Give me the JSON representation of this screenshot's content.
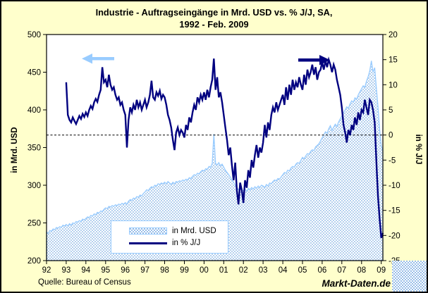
{
  "title": {
    "line1": "Industrie - Auftragseingänge in Mrd. USD vs. % J/J, SA,",
    "line2": "1992 - Feb. 2009"
  },
  "source": "Quelle: Bureau of Census",
  "watermark": "Markt-Daten.de",
  "colors": {
    "background": "#FFFFCC",
    "plot_background": "#FFFFFF",
    "area_dot": "#7FAEE3",
    "area_outline": "#99CCFF",
    "line": "#000080",
    "axis": "#000000",
    "left_arrow": "#99CCFF",
    "right_arrow": "#000080",
    "legend_border": "#99CCFF"
  },
  "chart_data": {
    "type": "area+line",
    "title": "Industrie - Auftragseingänge in Mrd. USD vs. % J/J, SA, 1992 - Feb. 2009",
    "x_axis": {
      "unit": "year",
      "tick_labels": [
        "92",
        "93",
        "94",
        "95",
        "96",
        "97",
        "98",
        "99",
        "00",
        "01",
        "02",
        "03",
        "04",
        "05",
        "06",
        "07",
        "08",
        "09"
      ]
    },
    "left_axis": {
      "label": "in Mrd. USD",
      "min": 200,
      "max": 500,
      "ticks": [
        500,
        450,
        400,
        350,
        300,
        250,
        200
      ]
    },
    "right_axis": {
      "label": "in % J/J",
      "min": -25,
      "max": 20,
      "ticks": [
        20,
        15,
        10,
        5,
        0,
        -5,
        -10,
        -15,
        -20,
        -25
      ],
      "zero_line_dashed": true
    },
    "legend": {
      "position": "inside-bottom-left",
      "items": [
        "in Mrd. USD",
        "in % J/J"
      ]
    },
    "series": [
      {
        "name": "in Mrd. USD",
        "type": "area",
        "axis": "left",
        "start": "1992-01",
        "frequency": "monthly",
        "values": [
          238,
          236,
          240,
          239,
          242,
          241,
          244,
          243,
          245,
          244,
          247,
          246,
          248,
          246,
          249,
          247,
          250,
          249,
          252,
          251,
          253,
          252,
          255,
          254,
          256,
          258,
          257,
          260,
          259,
          262,
          261,
          264,
          263,
          266,
          265,
          268,
          270,
          269,
          272,
          271,
          273,
          272,
          274,
          273,
          275,
          274,
          276,
          275,
          277,
          275,
          279,
          281,
          280,
          283,
          282,
          285,
          284,
          287,
          286,
          289,
          291,
          294,
          293,
          296,
          298,
          297,
          300,
          299,
          302,
          301,
          303,
          302,
          304,
          302,
          305,
          303,
          301,
          304,
          302,
          305,
          304,
          306,
          305,
          307,
          306,
          308,
          307,
          310,
          309,
          312,
          314,
          313,
          316,
          315,
          318,
          320,
          319,
          322,
          321,
          325,
          324,
          329,
          368,
          329,
          327,
          330,
          326,
          328,
          324,
          320,
          317,
          314,
          311,
          307,
          304,
          300,
          297,
          294,
          296,
          293,
          293,
          295,
          292,
          296,
          294,
          297,
          295,
          298,
          296,
          299,
          297,
          300,
          299,
          297,
          301,
          299,
          303,
          302,
          305,
          307,
          306,
          309,
          308,
          311,
          314,
          317,
          316,
          320,
          319,
          323,
          325,
          324,
          328,
          330,
          329,
          333,
          337,
          335,
          339,
          342,
          341,
          345,
          347,
          346,
          351,
          353,
          355,
          359,
          363,
          367,
          371,
          369,
          375,
          379,
          373,
          377,
          381,
          378,
          384,
          388,
          392,
          396,
          400,
          404,
          402,
          408,
          412,
          410,
          416,
          414,
          420,
          424,
          428,
          432,
          430,
          438,
          444,
          452,
          465,
          450,
          456,
          430,
          405,
          375,
          352,
          346
        ]
      },
      {
        "name": "in % J/J",
        "type": "line",
        "axis": "right",
        "start": "1993-01",
        "frequency": "monthly",
        "values": [
          10.5,
          4.0,
          3.0,
          2.5,
          3.5,
          2.8,
          2.2,
          3.0,
          3.8,
          3.2,
          4.2,
          3.6,
          4.5,
          3.8,
          5.0,
          5.8,
          5.2,
          6.5,
          7.2,
          6.6,
          8.0,
          9.0,
          13.5,
          10.5,
          11.0,
          9.5,
          12.0,
          10.0,
          9.0,
          9.5,
          8.0,
          7.0,
          7.5,
          6.0,
          6.5,
          5.0,
          4.0,
          -2.5,
          3.0,
          5.5,
          4.5,
          6.0,
          5.0,
          7.0,
          5.5,
          6.5,
          5.0,
          6.0,
          7.0,
          5.5,
          6.5,
          8.0,
          10.8,
          7.5,
          7.0,
          8.5,
          7.8,
          8.8,
          7.2,
          8.0,
          7.5,
          6.0,
          4.0,
          3.0,
          1.5,
          -1.0,
          -3.0,
          0.5,
          1.5,
          0.0,
          1.0,
          0.5,
          -0.5,
          2.0,
          1.0,
          3.5,
          2.5,
          4.5,
          6.0,
          5.0,
          7.5,
          6.5,
          8.0,
          7.0,
          8.5,
          7.0,
          9.0,
          7.5,
          9.5,
          11.0,
          15.2,
          9.0,
          11.5,
          7.5,
          8.5,
          6.5,
          4.0,
          1.5,
          -1.0,
          -4.0,
          -2.5,
          -6.0,
          -9.0,
          -5.5,
          -11.0,
          -13.8,
          -9.5,
          -11.0,
          -13.5,
          -9.0,
          -10.5,
          -7.0,
          -8.5,
          -5.0,
          -6.5,
          -4.0,
          -2.0,
          -4.5,
          -2.5,
          -3.5,
          -1.5,
          2.0,
          -0.5,
          2.5,
          1.0,
          4.0,
          5.5,
          4.5,
          6.5,
          5.0,
          6.0,
          7.0,
          8.0,
          6.0,
          9.5,
          7.0,
          10.0,
          8.0,
          11.0,
          9.0,
          10.5,
          9.5,
          11.5,
          10.0,
          9.0,
          12.0,
          10.0,
          13.0,
          11.5,
          12.5,
          14.0,
          12.0,
          13.5,
          11.0,
          12.5,
          13.0,
          14.5,
          13.0,
          14.8,
          13.5,
          15.0,
          14.0,
          12.5,
          14.0,
          13.0,
          11.0,
          9.5,
          8.0,
          5.5,
          2.0,
          0.5,
          -1.5,
          1.0,
          0.0,
          2.0,
          1.0,
          3.5,
          2.0,
          4.5,
          3.0,
          5.0,
          4.5,
          7.0,
          5.5,
          4.0,
          7.0,
          6.5,
          5.0,
          2.5,
          -5.0,
          -12.0,
          -16.5,
          -20.5,
          -19.5
        ]
      }
    ]
  }
}
